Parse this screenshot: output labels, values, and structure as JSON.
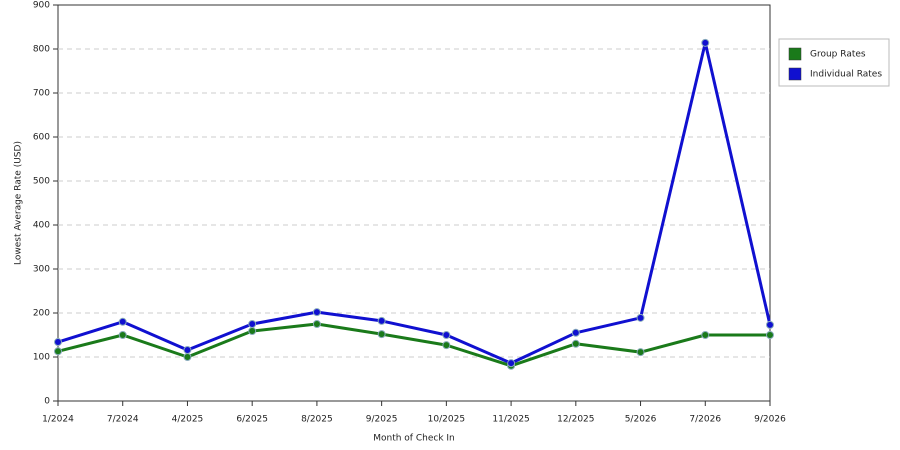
{
  "chart_data": {
    "type": "line",
    "x_label": "Month of Check In",
    "y_label": "Lowest Average Rate (USD)",
    "categories": [
      "1/2024",
      "7/2024",
      "4/2025",
      "6/2025",
      "8/2025",
      "9/2025",
      "10/2025",
      "11/2025",
      "12/2025",
      "5/2026",
      "7/2026",
      "9/2026"
    ],
    "series": [
      {
        "name": "Group Rates",
        "color": "#1a7a1a",
        "values": [
          113,
          150,
          100,
          159,
          175,
          152,
          127,
          80,
          130,
          111,
          150,
          150
        ]
      },
      {
        "name": "Individual Rates",
        "color": "#1010d0",
        "values": [
          134,
          180,
          116,
          175,
          202,
          182,
          150,
          86,
          155,
          189,
          814,
          173
        ]
      }
    ],
    "ylim": [
      0,
      900
    ],
    "yticks": [
      0,
      100,
      200,
      300,
      400,
      500,
      600,
      700,
      800,
      900
    ],
    "grid": true,
    "legend": "right"
  }
}
